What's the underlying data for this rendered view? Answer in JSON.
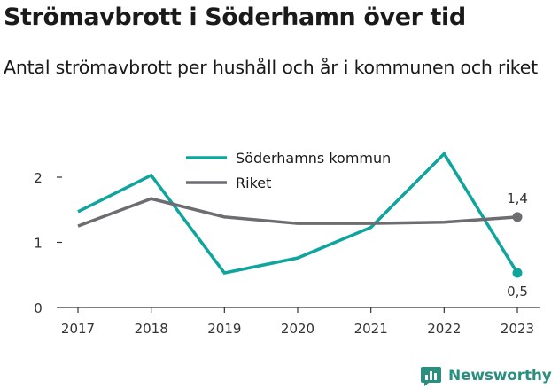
{
  "title": "Strömavbrott i Söderhamn över tid",
  "subtitle": "Antal strömavbrott per hushåll och år i kommunen och riket",
  "brand": {
    "name": "Newsworthy",
    "icon": "bar-chart-logo-icon",
    "color": "#2a8f7f"
  },
  "chart_data": {
    "type": "line",
    "x": [
      "2017",
      "2018",
      "2019",
      "2020",
      "2021",
      "2022",
      "2023"
    ],
    "ylim": [
      0,
      2.5
    ],
    "yticks": [
      0,
      1,
      2
    ],
    "grid": false,
    "legend_position": "top-center",
    "series": [
      {
        "name": "Söderhamns kommun",
        "color": "#0fa59c",
        "values": [
          1.47,
          2.03,
          0.53,
          0.76,
          1.23,
          2.36,
          0.53
        ],
        "end_label": "0,5"
      },
      {
        "name": "Riket",
        "color": "#6d6c70",
        "values": [
          1.25,
          1.67,
          1.39,
          1.29,
          1.29,
          1.31,
          1.39
        ],
        "end_label": "1,4"
      }
    ]
  }
}
